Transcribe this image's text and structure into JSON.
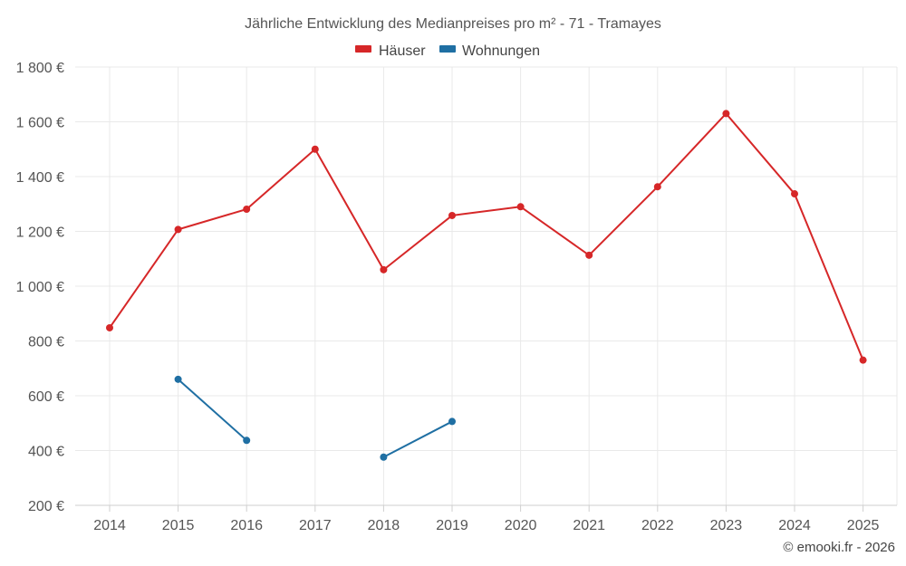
{
  "chart_data": {
    "type": "line",
    "title": "Jährliche Entwicklung des Medianpreises pro m² - 71 - Tramayes",
    "xlabel": "",
    "ylabel": "",
    "categories": [
      "2014",
      "2015",
      "2016",
      "2017",
      "2018",
      "2019",
      "2020",
      "2021",
      "2022",
      "2023",
      "2024",
      "2025"
    ],
    "ylim": [
      200,
      1800
    ],
    "y_ticks": [
      200,
      400,
      600,
      800,
      1000,
      1200,
      1400,
      1600,
      1800
    ],
    "y_tick_labels": [
      "200 €",
      "400 €",
      "600 €",
      "800 €",
      "1 000 €",
      "1 200 €",
      "1 400 €",
      "1 600 €",
      "1 800 €"
    ],
    "grid": true,
    "legend_position": "top-center",
    "series": [
      {
        "name": "Häuser",
        "color": "#d62728",
        "values": [
          848,
          1207,
          1281,
          1500,
          1060,
          1258,
          1290,
          1113,
          1363,
          1630,
          1337,
          730
        ]
      },
      {
        "name": "Wohnungen",
        "color": "#1f6fa3",
        "values": [
          null,
          660,
          437,
          null,
          376,
          506,
          null,
          null,
          null,
          null,
          null,
          null
        ]
      }
    ],
    "credit": "© emooki.fr - 2026"
  }
}
